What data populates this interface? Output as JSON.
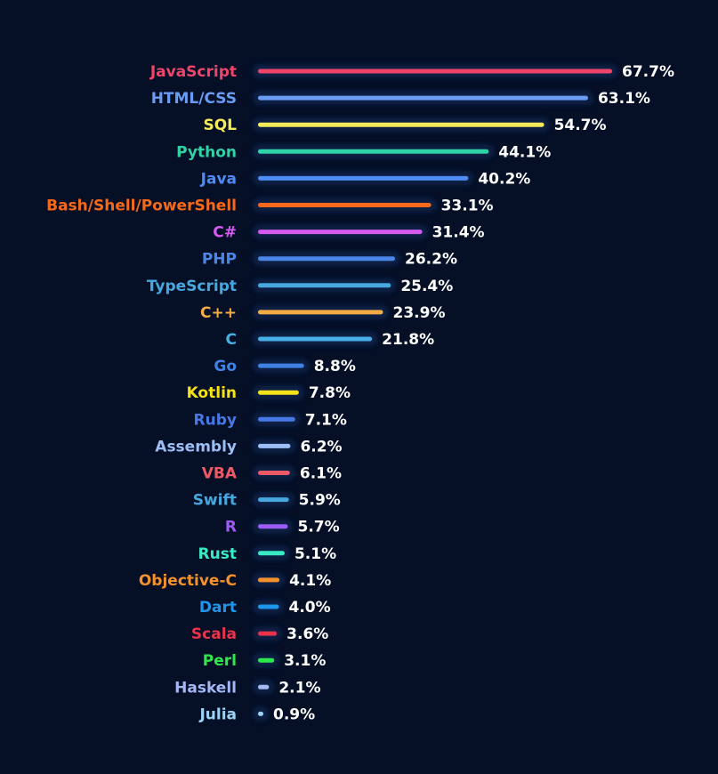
{
  "chart_data": {
    "type": "bar",
    "orientation": "horizontal",
    "title": "",
    "xlabel": "",
    "ylabel": "",
    "xlim": [
      0,
      67.7
    ],
    "grid": false,
    "legend": "none",
    "background_color": "#050f26",
    "categories": [
      "JavaScript",
      "HTML/CSS",
      "SQL",
      "Python",
      "Java",
      "Bash/Shell/PowerShell",
      "C#",
      "PHP",
      "TypeScript",
      "C++",
      "C",
      "Go",
      "Kotlin",
      "Ruby",
      "Assembly",
      "VBA",
      "Swift",
      "R",
      "Rust",
      "Objective-C",
      "Dart",
      "Scala",
      "Perl",
      "Haskell",
      "Julia"
    ],
    "values": [
      67.7,
      63.1,
      54.7,
      44.1,
      40.2,
      33.1,
      31.4,
      26.2,
      25.4,
      23.9,
      21.8,
      8.8,
      7.8,
      7.1,
      6.2,
      6.1,
      5.9,
      5.7,
      5.1,
      4.1,
      4.0,
      3.6,
      3.1,
      2.1,
      0.9
    ],
    "value_labels": [
      "67.7%",
      "63.1%",
      "54.7%",
      "44.1%",
      "40.2%",
      "33.1%",
      "31.4%",
      "26.2%",
      "25.4%",
      "23.9%",
      "21.8%",
      "8.8%",
      "7.8%",
      "7.1%",
      "6.2%",
      "6.1%",
      "5.9%",
      "5.7%",
      "5.1%",
      "4.1%",
      "4.0%",
      "3.6%",
      "3.1%",
      "2.1%",
      "0.9%"
    ],
    "colors": [
      "#f0456b",
      "#6b9cf5",
      "#f5ea5a",
      "#2fd3a6",
      "#4d8cf5",
      "#f56a1a",
      "#d65af0",
      "#4a86e8",
      "#47a8e0",
      "#f5ac45",
      "#47b0e6",
      "#3f82e3",
      "#f5e218",
      "#4679e6",
      "#9cbdf5",
      "#ed5a67",
      "#47a8e0",
      "#9c5cf5",
      "#38ebc4",
      "#f5922d",
      "#1e96eb",
      "#e8334a",
      "#2de84a",
      "#a3b8f5",
      "#9cd3f5"
    ]
  }
}
